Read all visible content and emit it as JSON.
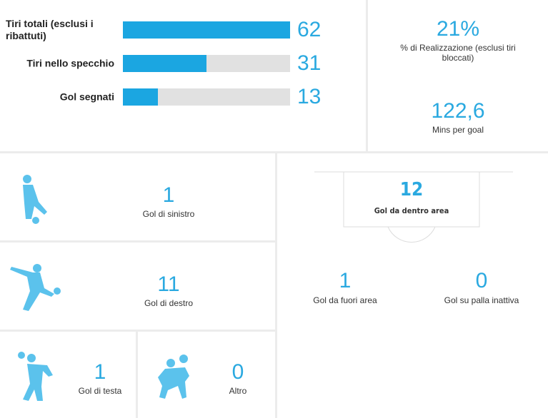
{
  "chart_data": {
    "type": "bar",
    "orientation": "horizontal",
    "categories": [
      "Tiri totali (esclusi i ribattuti)",
      "Tiri nello specchio",
      "Gol segnati"
    ],
    "values": [
      62,
      31,
      13
    ],
    "xlim": [
      0,
      62
    ],
    "color": "#1ba6e1",
    "track_color": "#e1e1e1"
  },
  "summary": [
    {
      "value": "21%",
      "label": "% di Realizzazione (esclusi tiri bloccati)"
    },
    {
      "value": "122,6",
      "label": "Mins per goal"
    }
  ],
  "goals_by_body": [
    {
      "value": "1",
      "label": "Gol di sinistro"
    },
    {
      "value": "11",
      "label": "Gol di destro"
    },
    {
      "value": "1",
      "label": "Gol di testa"
    },
    {
      "value": "0",
      "label": "Altro"
    }
  ],
  "goals_by_zone": [
    {
      "value": "12",
      "label": "Gol da dentro area"
    },
    {
      "value": "1",
      "label": "Gol da fuori area"
    },
    {
      "value": "0",
      "label": "Gol su palla inattiva"
    }
  ]
}
